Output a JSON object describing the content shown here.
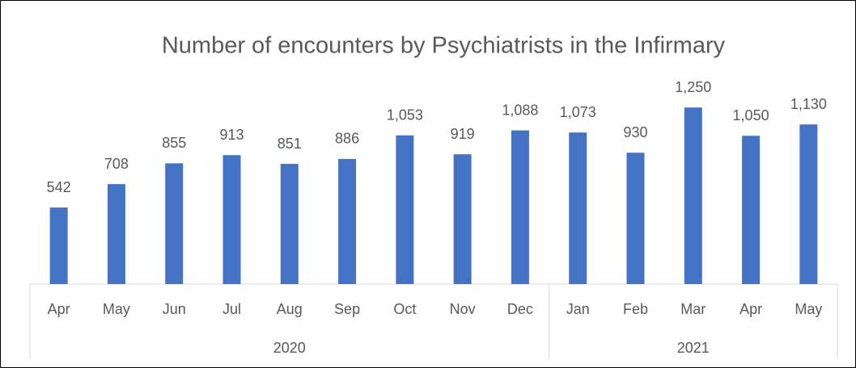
{
  "chart_data": {
    "type": "bar",
    "title": "Number of encounters by Psychiatrists in the Infirmary",
    "categories": [
      "Apr",
      "May",
      "Jun",
      "Jul",
      "Aug",
      "Sep",
      "Oct",
      "Nov",
      "Dec",
      "Jan",
      "Feb",
      "Mar",
      "Apr",
      "May"
    ],
    "group_labels": [
      "2020",
      null,
      null,
      null,
      null,
      null,
      null,
      null,
      null,
      "2021",
      null,
      null,
      null,
      null
    ],
    "values": [
      542,
      708,
      855,
      913,
      851,
      886,
      1053,
      919,
      1088,
      1073,
      930,
      1250,
      1050,
      1130
    ],
    "value_labels": [
      "542",
      "708",
      "855",
      "913",
      "851",
      "886",
      "1,053",
      "919",
      "1,088",
      "1,073",
      "930",
      "1,250",
      "1,050",
      "1,130"
    ],
    "color": "#4472c4",
    "ylim": [
      0,
      1400
    ]
  }
}
